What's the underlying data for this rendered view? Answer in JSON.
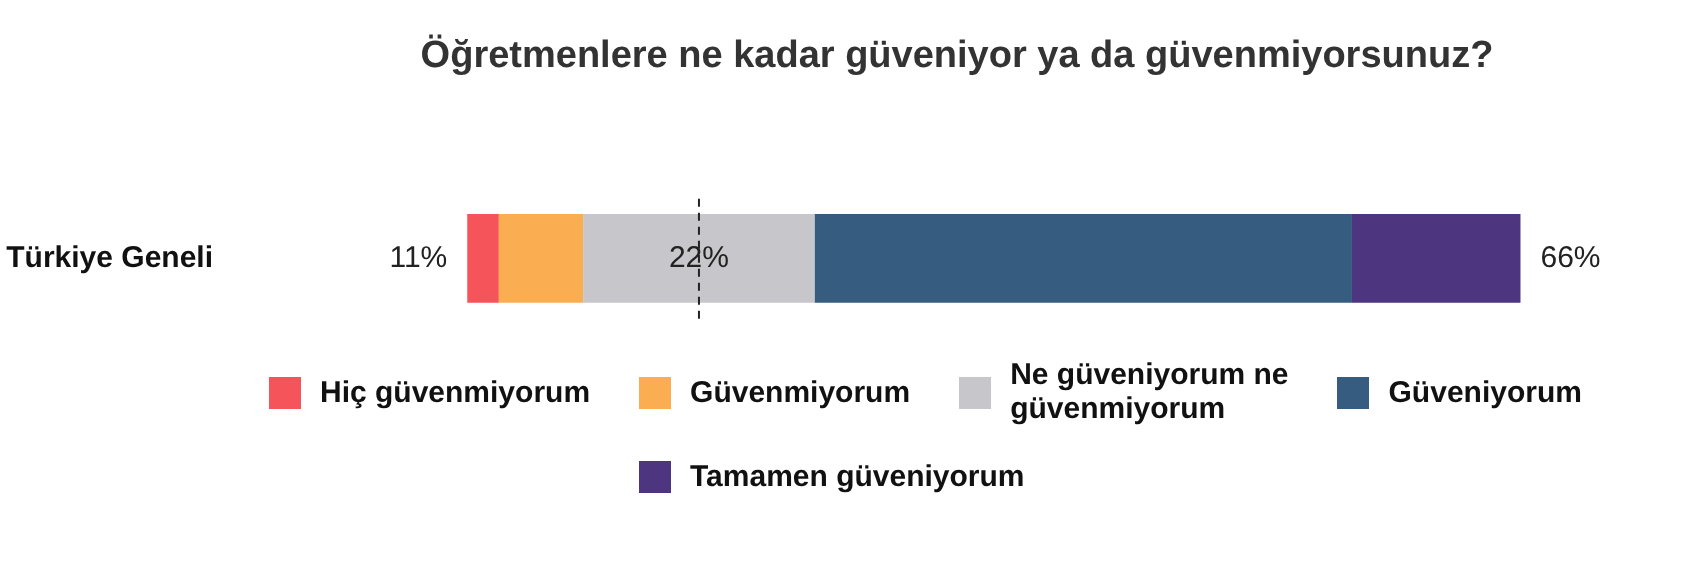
{
  "chart_data": {
    "type": "bar",
    "orientation": "horizontal",
    "stacked": true,
    "title": "Öğretmenlere ne kadar güveniyor ya da güvenmiyorsunuz?",
    "categories": [
      "Türkiye Geneli"
    ],
    "series": [
      {
        "name": "Hiç güvenmiyorum",
        "color": "#f4545a",
        "values": [
          3
        ]
      },
      {
        "name": "Güvenmiyorum",
        "color": "#fbad52",
        "values": [
          8
        ]
      },
      {
        "name": "Ne güveniyorum ne güvenmiyorum",
        "color": "#c7c7cb",
        "values": [
          22
        ],
        "value_labels": [
          "22%"
        ]
      },
      {
        "name": "Güveniyorum",
        "color": "#365d80",
        "values": [
          51
        ]
      },
      {
        "name": "Tamamen güveniyorum",
        "color": "#4d3580",
        "values": [
          16
        ]
      }
    ],
    "annotations": [
      "11%",
      "66%"
    ],
    "ref_lines": [
      {
        "axis": "x",
        "value": 22,
        "color": "#222222",
        "line_style": "dashed"
      }
    ],
    "tick_labels": "y",
    "legend": "bottom",
    "grid": false
  }
}
